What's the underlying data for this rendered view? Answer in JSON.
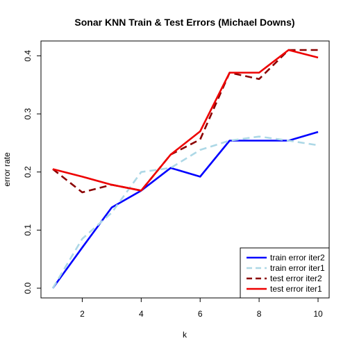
{
  "chart_data": {
    "type": "line",
    "title": "Sonar KNN Train & Test Errors (Michael Downs)",
    "xlabel": "k",
    "ylabel": "error rate",
    "xlim": [
      1,
      10
    ],
    "ylim": [
      0,
      0.41
    ],
    "x_ticks": [
      "2",
      "4",
      "6",
      "8",
      "10"
    ],
    "y_ticks": [
      "0.0",
      "0.1",
      "0.2",
      "0.3",
      "0.4"
    ],
    "x": [
      1,
      2,
      3,
      4,
      5,
      6,
      7,
      8,
      9,
      10
    ],
    "legend_position": "bottom-right",
    "series": [
      {
        "name": "train error iter2",
        "color": "#0000ff",
        "dash": "solid",
        "values": [
          0.0,
          0.07,
          0.139,
          0.168,
          0.207,
          0.192,
          0.254,
          0.254,
          0.254,
          0.269
        ]
      },
      {
        "name": "train error iter1",
        "color": "#add8e6",
        "dash": "dashed",
        "values": [
          0.0,
          0.085,
          0.13,
          0.2,
          0.207,
          0.238,
          0.254,
          0.261,
          0.254,
          0.246
        ]
      },
      {
        "name": "test error iter2",
        "color": "#8b0000",
        "dash": "dashed",
        "values": [
          0.205,
          0.165,
          0.178,
          0.168,
          0.23,
          0.256,
          0.371,
          0.36,
          0.41,
          0.41
        ]
      },
      {
        "name": "test error iter1",
        "color": "#ee0000",
        "dash": "solid",
        "values": [
          0.205,
          0.192,
          0.178,
          0.168,
          0.23,
          0.27,
          0.371,
          0.371,
          0.41,
          0.397
        ]
      }
    ]
  }
}
